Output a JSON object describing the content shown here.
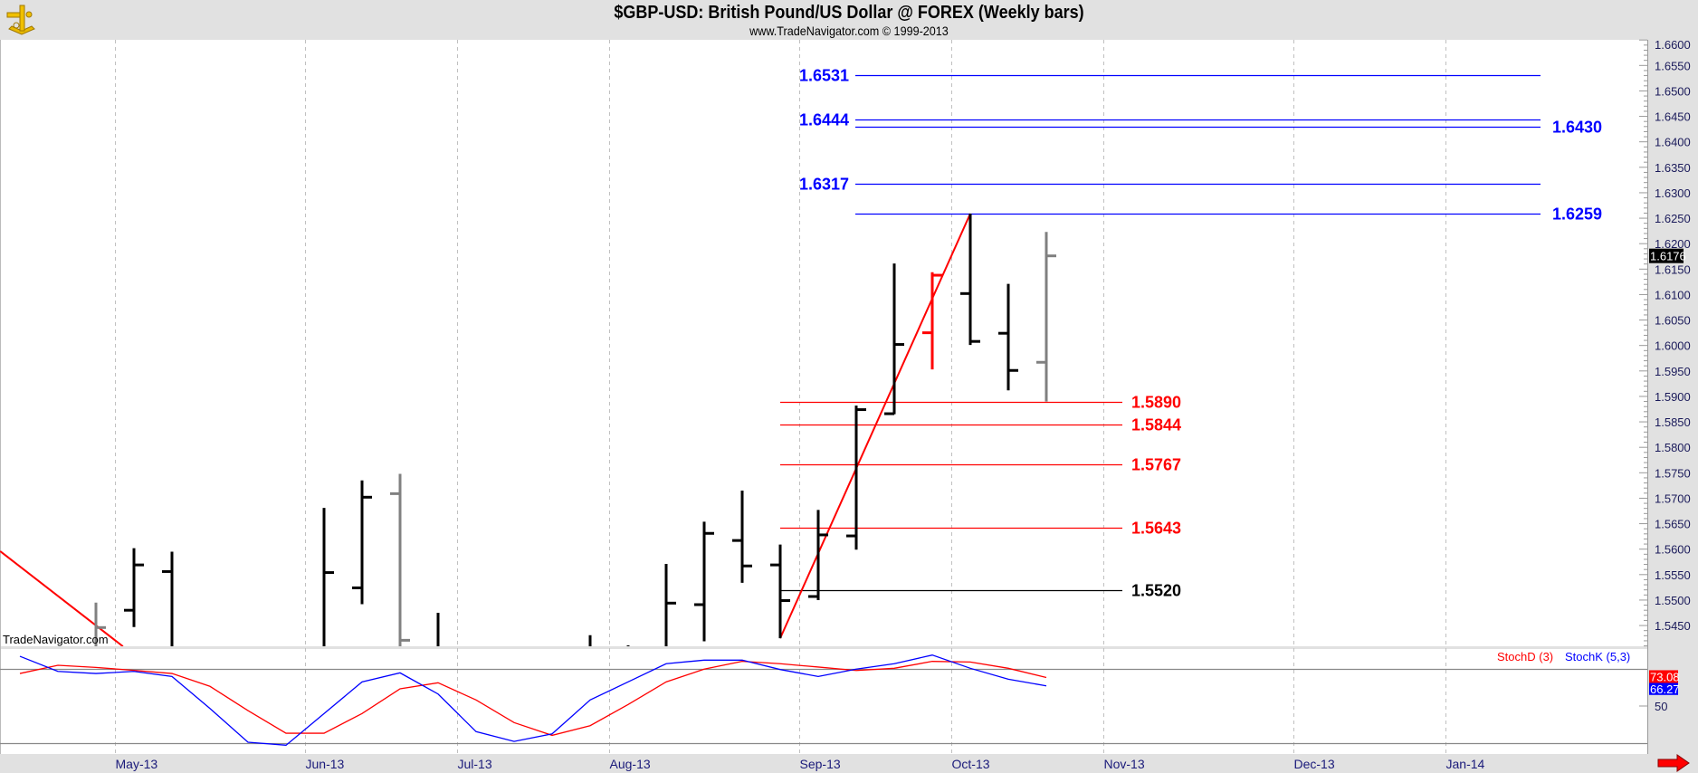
{
  "header": {
    "title": "$GBP-USD:  British Pound/US Dollar @ FOREX  (Weekly bars)",
    "subtitle": "www.TradeNavigator.com © 1999-2013",
    "logo": "sextant-icon"
  },
  "watermark": "TradeNavigator.com",
  "colors": {
    "up": "#000000",
    "gray": "#808080",
    "red": "#ff0000",
    "blue": "#0000ff",
    "green": "#00e000",
    "stochD": "#ff0000",
    "stochK": "#0000ff"
  },
  "chart_data": [
    {
      "type": "ohlc",
      "title": "$GBP-USD Weekly bars",
      "ylim": [
        1.5409,
        1.66
      ],
      "price_axis_labels": [
        "1.6600",
        "1.6550",
        "1.6500",
        "1.6450",
        "1.6400",
        "1.6350",
        "1.6300",
        "1.6250",
        "1.6200",
        "1.6150",
        "1.6100",
        "1.6050",
        "1.6000",
        "1.5950",
        "1.5900",
        "1.5850",
        "1.5800",
        "1.5750",
        "1.5700",
        "1.5650",
        "1.5600",
        "1.5550",
        "1.5500",
        "1.5450"
      ],
      "last_price": "1.6176",
      "months": [
        "May-13",
        "Jun-13",
        "Jul-13",
        "Aug-13",
        "Sep-13",
        "Oct-13",
        "Nov-13",
        "Dec-13",
        "Jan-14"
      ],
      "month_week_offsets": [
        0.5,
        5.5,
        9.5,
        13.5,
        18.5,
        22.5,
        26.5,
        31.5,
        35.5
      ],
      "bars": [
        {
          "o": null,
          "h": 1.5495,
          "l": null,
          "c": 1.5446,
          "color": "gray"
        },
        {
          "o": 1.548,
          "h": 1.5602,
          "l": 1.5447,
          "c": 1.5569,
          "color": "up"
        },
        {
          "o": 1.5556,
          "h": 1.5595,
          "l": null,
          "c": null,
          "color": "up"
        },
        null,
        null,
        null,
        {
          "o": null,
          "h": 1.5681,
          "l": null,
          "c": 1.5554,
          "color": "up"
        },
        {
          "o": 1.5524,
          "h": 1.5735,
          "l": 1.5492,
          "c": 1.5702,
          "color": "up"
        },
        {
          "o": 1.5709,
          "h": 1.5748,
          "l": null,
          "c": 1.5421,
          "color": "gray"
        },
        {
          "o": null,
          "h": 1.5475,
          "l": null,
          "c": null,
          "color": "up"
        },
        null,
        null,
        null,
        {
          "o": null,
          "h": 1.5431,
          "l": null,
          "c": null,
          "color": "up"
        },
        {
          "o": null,
          "h": 1.5411,
          "l": null,
          "c": null,
          "color": "up"
        },
        {
          "o": null,
          "h": 1.5571,
          "l": null,
          "c": 1.5494,
          "color": "up"
        },
        {
          "o": 1.5491,
          "h": 1.5654,
          "l": 1.5419,
          "c": 1.5631,
          "color": "up"
        },
        {
          "o": 1.5617,
          "h": 1.5715,
          "l": 1.5534,
          "c": 1.5567,
          "color": "up"
        },
        {
          "o": 1.5569,
          "h": 1.5609,
          "l": 1.5425,
          "c": 1.5499,
          "color": "up"
        },
        {
          "o": 1.5507,
          "h": 1.5677,
          "l": 1.55,
          "c": 1.5628,
          "color": "up"
        },
        {
          "o": 1.5626,
          "h": 1.5882,
          "l": 1.5599,
          "c": 1.5874,
          "color": "up"
        },
        {
          "o": 1.5866,
          "h": 1.6161,
          "l": 1.5865,
          "c": 1.6002,
          "color": "up"
        },
        {
          "o": 1.6025,
          "h": 1.6144,
          "l": 1.5953,
          "c": 1.6138,
          "color": "red"
        },
        {
          "o": 1.6102,
          "h": 1.6259,
          "l": 1.6001,
          "c": 1.6008,
          "color": "up"
        },
        {
          "o": 1.6024,
          "h": 1.6121,
          "l": 1.5912,
          "c": 1.5951,
          "color": "up"
        },
        {
          "o": 1.5967,
          "h": 1.6223,
          "l": 1.589,
          "c": 1.6176,
          "color": "gray"
        }
      ],
      "trendlines": [
        {
          "from_week": -2.52,
          "from_price": 1.5596,
          "to_week": 0.71,
          "to_price": 1.5409,
          "color": "red"
        },
        {
          "from_week": 18,
          "from_price": 1.5425,
          "to_week": 23,
          "to_price": 1.6259,
          "color": "red"
        }
      ],
      "levels_blue_left": [
        {
          "value": 1.6531,
          "label": "1.6531"
        },
        {
          "value": 1.6444,
          "label": "1.6444"
        },
        {
          "value": 1.6317,
          "label": "1.6317"
        }
      ],
      "levels_blue_right": [
        {
          "value": 1.643,
          "label": "1.6430"
        },
        {
          "value": 1.6259,
          "label": "1.6259"
        }
      ],
      "levels_red": [
        {
          "value": 1.589,
          "label": "1.5890"
        },
        {
          "value": 1.5844,
          "label": "1.5844"
        },
        {
          "value": 1.5767,
          "label": "1.5767"
        },
        {
          "value": 1.5643,
          "label": "1.5643"
        }
      ],
      "levels_black": [
        {
          "value": 1.552,
          "label": "1.5520"
        }
      ]
    },
    {
      "type": "line",
      "title": "Stochastics",
      "legend": [
        "StochD (3)",
        "StochK (5,3)"
      ],
      "axis_label": "50",
      "reference_lines": [
        80,
        20
      ],
      "first_week": -2,
      "series": [
        {
          "name": "StochD (3)",
          "last": "73.08",
          "values": [
            76.3,
            82.9,
            81.2,
            78.8,
            76.3,
            65.9,
            46.3,
            28.0,
            28.0,
            43.9,
            63.9,
            68.8,
            54.9,
            36.6,
            26.3,
            34.1,
            51.2,
            69.5,
            79.8,
            86.1,
            84.2,
            81.5,
            78.7,
            80.5,
            86.1,
            85.6,
            80.5,
            73.08
          ]
        },
        {
          "name": "StochK (5,3)",
          "last": "66.27",
          "values": [
            90.2,
            78.0,
            76.3,
            78.0,
            73.9,
            48.0,
            20.7,
            18.3,
            43.9,
            69.5,
            76.8,
            59.7,
            29.3,
            21.4,
            27.5,
            54.9,
            69.5,
            84.2,
            87.1,
            87.1,
            79.5,
            73.9,
            79.8,
            84.2,
            91.2,
            80.5,
            71.7,
            66.27
          ]
        }
      ]
    }
  ]
}
